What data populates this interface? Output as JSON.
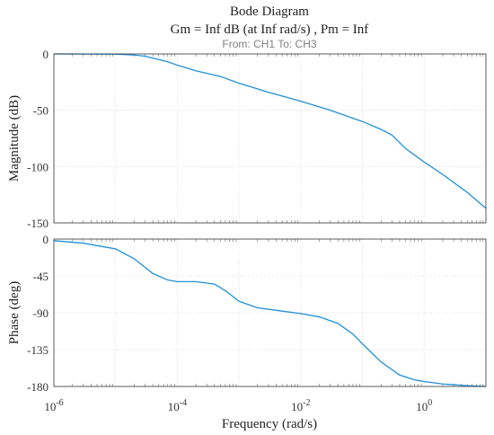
{
  "chart_data": [
    {
      "type": "line",
      "title": "Bode Diagram",
      "subtitle": "Gm = Inf dB (at Inf rad/s) ,  Pm = Inf",
      "io_label": "From: CH1  To: CH3",
      "ylabel": "Magnitude (dB)",
      "xlabel": "",
      "xscale": "log",
      "xlim": [
        1e-06,
        10
      ],
      "ylim": [
        -150,
        0
      ],
      "yticks": [
        0,
        -50,
        -100,
        -150
      ],
      "grid": true,
      "line_color": "#1f8fd6",
      "series": [
        {
          "x": [
            1e-06,
            1e-05,
            2e-05,
            3e-05,
            5e-05,
            7e-05,
            0.0001,
            0.0002,
            0.0005,
            0.001,
            0.003,
            0.01,
            0.03,
            0.1,
            0.2,
            0.3,
            0.5,
            1,
            2,
            5,
            10
          ],
          "y": [
            0,
            -0.2,
            -1,
            -2,
            -5,
            -7,
            -10,
            -15,
            -20,
            -26,
            -34,
            -42,
            -50,
            -60,
            -67,
            -72,
            -84,
            -96,
            -107,
            -123,
            -137
          ]
        }
      ]
    },
    {
      "type": "line",
      "ylabel": "Phase (deg)",
      "xlabel": "Frequency  (rad/s)",
      "xscale": "log",
      "xlim": [
        1e-06,
        10
      ],
      "ylim": [
        -180,
        0
      ],
      "yticks": [
        0,
        -45,
        -90,
        -135,
        -180
      ],
      "xticks": [
        {
          "base": "10",
          "exp": "-6",
          "value": 1e-06
        },
        {
          "base": "10",
          "exp": "-4",
          "value": 0.0001
        },
        {
          "base": "10",
          "exp": "-2",
          "value": 0.01
        },
        {
          "base": "10",
          "exp": "0",
          "value": 1
        }
      ],
      "grid": true,
      "line_color": "#1f8fd6",
      "series": [
        {
          "x": [
            1e-06,
            3e-06,
            1e-05,
            2e-05,
            4e-05,
            7e-05,
            0.0001,
            0.0002,
            0.0004,
            0.0006,
            0.001,
            0.002,
            0.005,
            0.01,
            0.02,
            0.04,
            0.07,
            0.1,
            0.2,
            0.4,
            0.7,
            1,
            2,
            5,
            10
          ],
          "y": [
            -2,
            -5,
            -12,
            -24,
            -42,
            -50,
            -52,
            -52,
            -55,
            -63,
            -76,
            -84,
            -88,
            -91,
            -95,
            -103,
            -116,
            -128,
            -150,
            -166,
            -172,
            -174,
            -177,
            -179,
            -180
          ]
        }
      ]
    }
  ]
}
